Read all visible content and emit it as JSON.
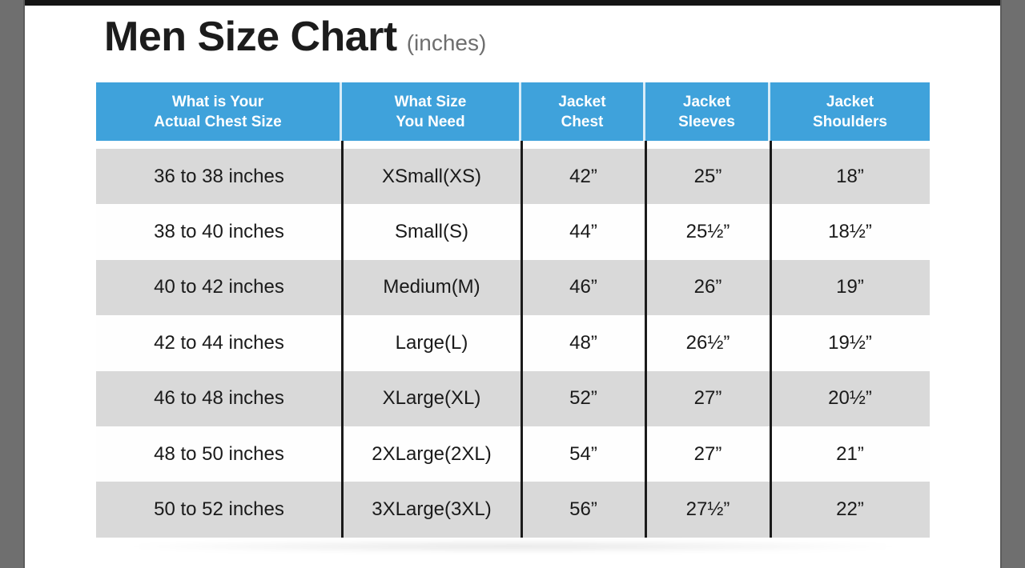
{
  "page": {
    "title": "Men Size Chart",
    "title_suffix": "(inches)"
  },
  "table": {
    "headers": [
      {
        "line1": "What is Your",
        "line2": "Actual Chest Size"
      },
      {
        "line1": "What Size",
        "line2": "You Need"
      },
      {
        "line1": "Jacket",
        "line2": "Chest"
      },
      {
        "line1": "Jacket",
        "line2": "Sleeves"
      },
      {
        "line1": "Jacket",
        "line2": "Shoulders"
      }
    ]
  },
  "chart_data": {
    "type": "table",
    "title": "Men Size Chart (inches)",
    "columns": [
      "What is Your Actual Chest Size",
      "What Size You Need",
      "Jacket Chest",
      "Jacket Sleeves",
      "Jacket Shoulders"
    ],
    "rows": [
      [
        "36 to 38 inches",
        "XSmall(XS)",
        "42”",
        "25”",
        "18”"
      ],
      [
        "38 to 40 inches",
        "Small(S)",
        "44”",
        "25½”",
        "18½”"
      ],
      [
        "40 to 42 inches",
        "Medium(M)",
        "46”",
        "26”",
        "19”"
      ],
      [
        "42 to 44 inches",
        "Large(L)",
        "48”",
        "26½”",
        "19½”"
      ],
      [
        "46 to 48 inches",
        "XLarge(XL)",
        "52”",
        "27”",
        "20½”"
      ],
      [
        "48 to 50 inches",
        "2XLarge(2XL)",
        "54”",
        "27”",
        "21”"
      ],
      [
        "50 to 52 inches",
        "3XLarge(3XL)",
        "56”",
        "27½”",
        "22”"
      ]
    ]
  },
  "colors": {
    "header_bg": "#3FA2DB",
    "header_text": "#FFFFFF",
    "row_alt_bg": "#D9D9D9",
    "row_bg": "#FEFEFE",
    "body_text": "#1A1A1A",
    "column_divider": "#1B1B1B",
    "side_band": "#6F6F6F",
    "top_bar": "#141414",
    "title_text": "#1C1C1C",
    "title_suffix_text": "#6E6E6E"
  }
}
